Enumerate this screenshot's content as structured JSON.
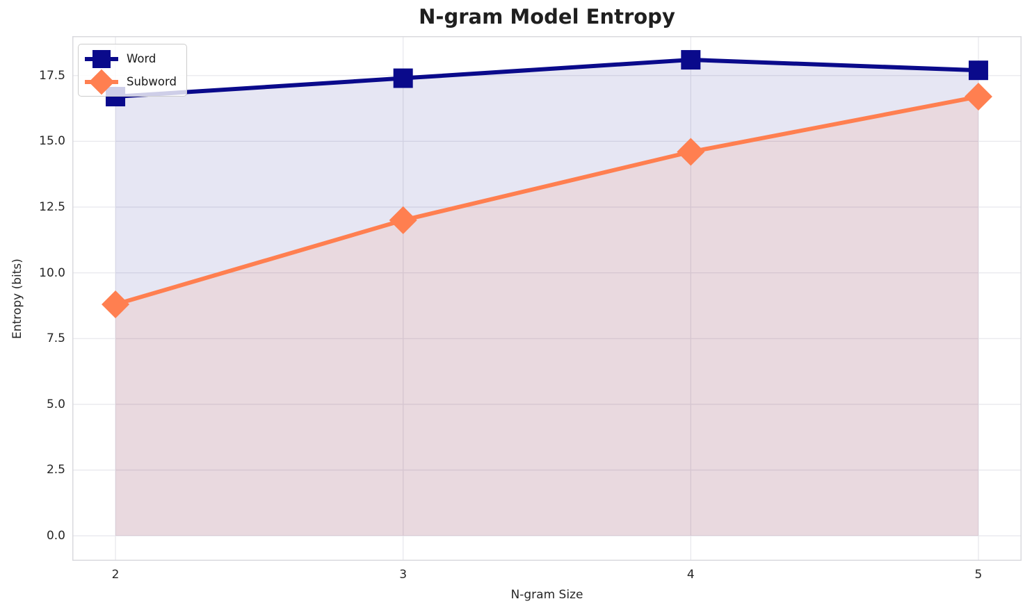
{
  "chart_data": {
    "type": "line",
    "title": "N-gram Model Entropy",
    "xlabel": "N-gram Size",
    "ylabel": "Entropy (bits)",
    "x": [
      2,
      3,
      4,
      5
    ],
    "series": [
      {
        "name": "Word",
        "values": [
          16.7,
          17.4,
          18.1,
          17.7
        ],
        "color": "#0a0a8b",
        "marker": "square",
        "fill_to_zero": true,
        "fill_alpha": 0.1
      },
      {
        "name": "Subword",
        "values": [
          8.8,
          12.0,
          14.6,
          16.7
        ],
        "color": "#ff7f50",
        "marker": "diamond",
        "fill_to_zero": true,
        "fill_alpha": 0.12
      }
    ],
    "xticks": {
      "values": [
        2,
        3,
        4,
        5
      ],
      "labels": [
        "2",
        "3",
        "4",
        "5"
      ]
    },
    "yticks": {
      "values": [
        0,
        2.5,
        5,
        7.5,
        10,
        12.5,
        15,
        17.5
      ],
      "labels": [
        "0.0",
        "2.5",
        "5.0",
        "7.5",
        "10.0",
        "12.5",
        "15.0",
        "17.5"
      ]
    },
    "xlim": [
      1.85,
      5.15
    ],
    "ylim": [
      -0.95,
      19.0
    ],
    "grid": true,
    "legend_position": "upper left",
    "colors": {
      "grid": "#e8e8ed",
      "spine": "#d9d9de",
      "tick_text": "#262626",
      "title_text": "#1f1f1f"
    }
  }
}
